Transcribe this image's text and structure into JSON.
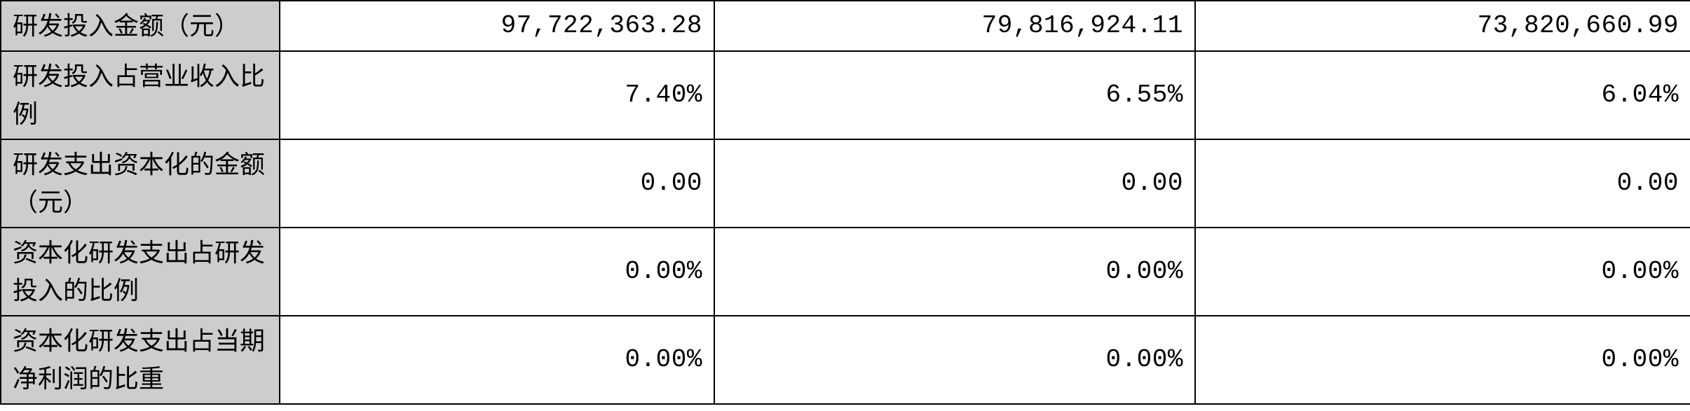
{
  "table": {
    "background_label": "#cdcdcd",
    "background_value": "#ffffff",
    "border_color": "#000000",
    "font_size": 36,
    "columns": {
      "label_width": 398,
      "val1_width": 620,
      "val2_width": 686,
      "val3_width": 707
    },
    "rows": [
      {
        "label": "研发投入金额（元）",
        "values": [
          "97,722,363.28",
          "79,816,924.11",
          "73,820,660.99"
        ],
        "multiline": false
      },
      {
        "label": "研发投入占营业收入比例",
        "values": [
          "7.40%",
          "6.55%",
          "6.04%"
        ],
        "multiline": false
      },
      {
        "label": "研发支出资本化的金额（元）",
        "values": [
          "0.00",
          "0.00",
          "0.00"
        ],
        "multiline": true
      },
      {
        "label": "资本化研发支出占研发投入的比例",
        "values": [
          "0.00%",
          "0.00%",
          "0.00%"
        ],
        "multiline": true
      },
      {
        "label": "资本化研发支出占当期净利润的比重",
        "values": [
          "0.00%",
          "0.00%",
          "0.00%"
        ],
        "multiline": true
      }
    ]
  }
}
